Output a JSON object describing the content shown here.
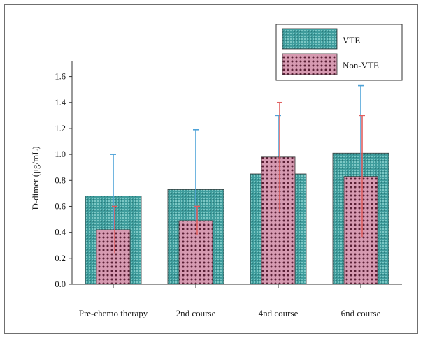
{
  "chart_data": {
    "type": "bar",
    "title": "",
    "xlabel": "",
    "ylabel": "D-dimer (μg/mL)",
    "ylim": [
      0,
      1.7
    ],
    "yticks": [
      0.0,
      0.2,
      0.4,
      0.6,
      0.8,
      1.0,
      1.2,
      1.4,
      1.6
    ],
    "ytick_labels": [
      "0.0",
      "0.2",
      "0.4",
      "0.6",
      "0.8",
      "1.0",
      "1.2",
      "1.4",
      "1.6"
    ],
    "categories": [
      "Pre-chemo therapy",
      "2nd course",
      "4nd course",
      "6nd course"
    ],
    "series": [
      {
        "name": "VTE",
        "values": [
          0.68,
          0.73,
          0.85,
          1.01
        ],
        "error_upper": [
          1.0,
          1.19,
          1.3,
          1.53
        ],
        "error_lower": [
          0.36,
          0.27,
          0.4,
          0.49
        ],
        "color": "#3f9c9c",
        "error_color": "#4fa3d8"
      },
      {
        "name": "Non-VTE",
        "values": [
          0.42,
          0.49,
          0.98,
          0.83
        ],
        "error_upper": [
          0.6,
          0.6,
          1.4,
          1.3
        ],
        "error_lower": [
          0.24,
          0.38,
          0.56,
          0.36
        ],
        "color": "#c97d9b",
        "error_color": "#e06060"
      }
    ],
    "grid": false,
    "legend_position": "top-right"
  }
}
